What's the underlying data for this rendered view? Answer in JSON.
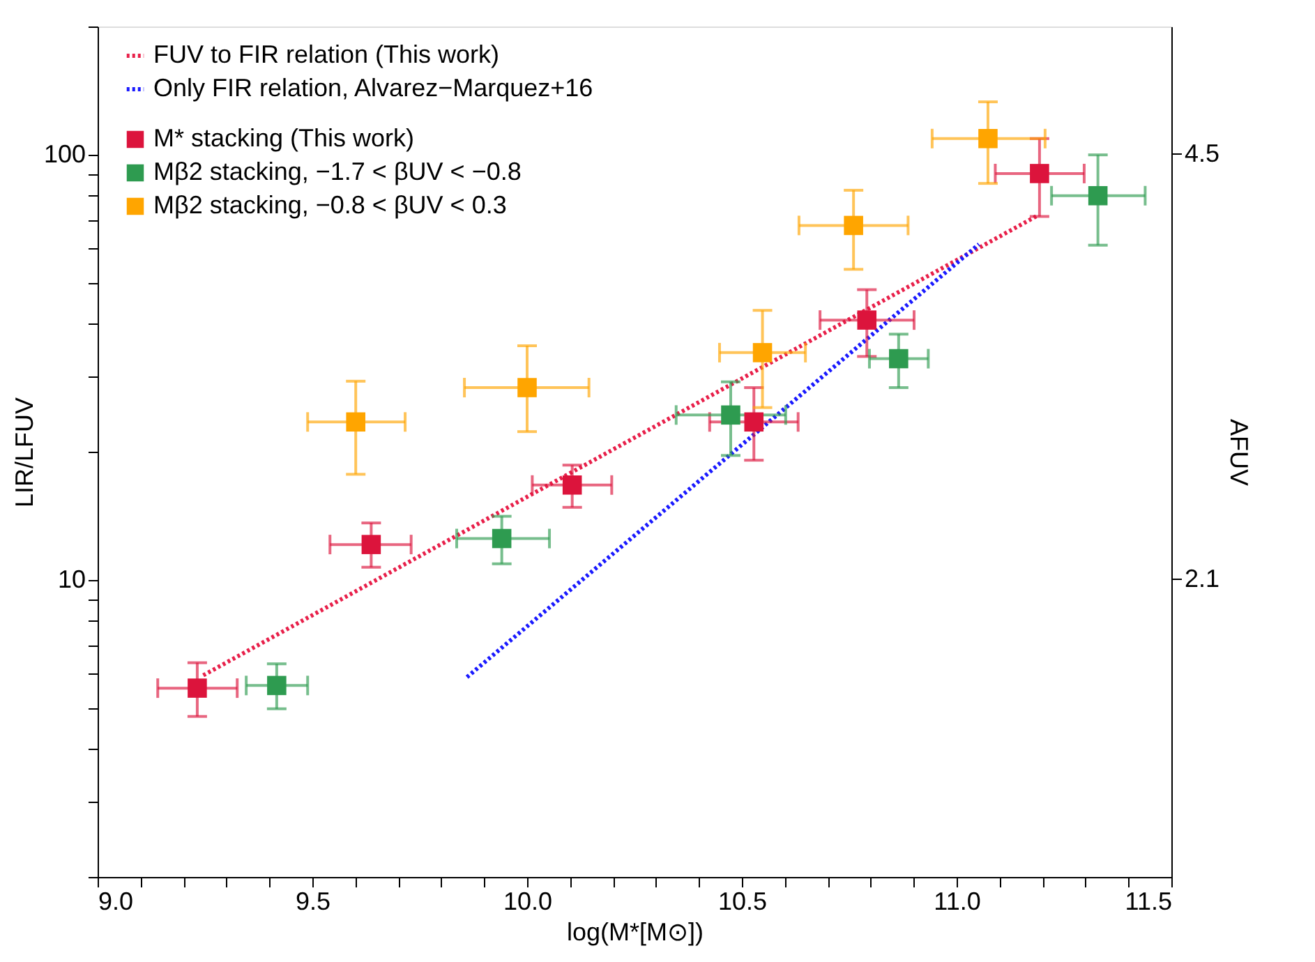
{
  "chart_data": {
    "type": "scatter",
    "xlabel": "log(M*[M⊙])",
    "ylabel": "LIR/LFUV",
    "y2label": "AFUV",
    "log": "y",
    "grid": false,
    "legend": "top left",
    "xlim": [
      9.0,
      11.5
    ],
    "xticks": [
      {
        "value": 9.0,
        "label": "9.0"
      },
      {
        "value": 9.1,
        "label": null
      },
      {
        "value": 9.2,
        "label": null
      },
      {
        "value": 9.3,
        "label": null
      },
      {
        "value": 9.4,
        "label": null
      },
      {
        "value": 9.5,
        "label": "9.5"
      },
      {
        "value": 9.6,
        "label": null
      },
      {
        "value": 9.7,
        "label": null
      },
      {
        "value": 9.8,
        "label": null
      },
      {
        "value": 9.9,
        "label": null
      },
      {
        "value": 10.0,
        "label": "10.0"
      },
      {
        "value": 10.1,
        "label": null
      },
      {
        "value": 10.2,
        "label": null
      },
      {
        "value": 10.3,
        "label": null
      },
      {
        "value": 10.4,
        "label": null
      },
      {
        "value": 10.5,
        "label": "10.5"
      },
      {
        "value": 10.6,
        "label": null
      },
      {
        "value": 10.7,
        "label": null
      },
      {
        "value": 10.8,
        "label": null
      },
      {
        "value": 10.9,
        "label": null
      },
      {
        "value": 11.0,
        "label": "11.0"
      },
      {
        "value": 11.1,
        "label": null
      },
      {
        "value": 11.2,
        "label": null
      },
      {
        "value": 11.3,
        "label": null
      },
      {
        "value": 11.4,
        "label": null
      },
      {
        "value": 11.5,
        "label": "11.5"
      }
    ],
    "ylim": [
      2,
      200
    ],
    "yticks": [
      {
        "value": 2,
        "label": null
      },
      {
        "value": 3,
        "label": null
      },
      {
        "value": 4,
        "label": null
      },
      {
        "value": 5,
        "label": null
      },
      {
        "value": 6,
        "label": null
      },
      {
        "value": 7,
        "label": null
      },
      {
        "value": 8,
        "label": null
      },
      {
        "value": 9,
        "label": null
      },
      10,
      {
        "value": 20,
        "label": null
      },
      {
        "value": 30,
        "label": null
      },
      {
        "value": 40,
        "label": null
      },
      {
        "value": 50,
        "label": null
      },
      {
        "value": 60,
        "label": null
      },
      {
        "value": 70,
        "label": null
      },
      {
        "value": 80,
        "label": null
      },
      {
        "value": 90,
        "label": null
      },
      100,
      {
        "value": 200,
        "label": null
      }
    ],
    "y2lim": [
      0.42,
      5.22
    ],
    "y2ticks": [
      2.1,
      4.5
    ],
    "series": [
      {
        "name": "FUV to FIR relation (This work)",
        "type": "line",
        "color": "#e8204a",
        "line_style": "dotted",
        "marker": "none",
        "x": [
          9.246,
          11.189
        ],
        "values": [
          5.96,
          71.9
        ]
      },
      {
        "name": "Only FIR relation, Alvarez−Marquez+16",
        "type": "line",
        "color": "#1a1aff",
        "line_style": "dotted",
        "marker": "none",
        "x": [
          9.86,
          11.052
        ],
        "values": [
          5.9,
          61.5
        ]
      },
      {
        "name": "M* stacking (This work)",
        "color": "#dc143c",
        "marker": "square",
        "x": [
          9.232,
          9.637,
          10.105,
          10.528,
          10.791,
          11.193
        ],
        "values": [
          5.56,
          12.1,
          16.7,
          23.5,
          40.8,
          90.2
        ],
        "errors": [
          [
            4.77,
            6.38
          ],
          [
            10.7,
            13.6
          ],
          [
            14.8,
            18.6
          ],
          [
            19.1,
            28.3
          ],
          [
            33.5,
            48.1
          ],
          [
            71.5,
            109
          ]
        ],
        "xerrors": [
          [
            9.14,
            9.325
          ],
          [
            9.541,
            9.73
          ],
          [
            10.012,
            10.197
          ],
          [
            10.425,
            10.631
          ],
          [
            10.682,
            10.901
          ],
          [
            11.09,
            11.297
          ]
        ]
      },
      {
        "name": "Mβ2 stacking, −1.7 < βUV < −0.8",
        "color": "#2e9b50",
        "marker": "square",
        "x": [
          9.417,
          9.941,
          10.474,
          10.865,
          11.329
        ],
        "values": [
          5.64,
          12.5,
          24.4,
          33.1,
          80.0
        ],
        "errors": [
          [
            4.97,
            6.34
          ],
          [
            10.9,
            14.1
          ],
          [
            19.6,
            29.2
          ],
          [
            28.3,
            37.8
          ],
          [
            61.2,
            99.8
          ]
        ],
        "xerrors": [
          [
            9.346,
            9.489
          ],
          [
            9.836,
            10.052
          ],
          [
            10.347,
            10.602
          ],
          [
            10.797,
            10.934
          ],
          [
            11.221,
            11.439
          ]
        ]
      },
      {
        "name": "Mβ2 stacking, −0.8 < βUV < 0.3",
        "color": "#ffa500",
        "marker": "square",
        "x": [
          9.601,
          10.0,
          10.548,
          10.76,
          11.073
        ],
        "values": [
          23.5,
          28.3,
          34.2,
          68.1,
          109
        ],
        "errors": [
          [
            17.7,
            29.3
          ],
          [
            22.3,
            35.5
          ],
          [
            25.4,
            43.0
          ],
          [
            53.7,
            82.4
          ],
          [
            85.5,
            133
          ]
        ],
        "xerrors": [
          [
            9.489,
            9.716
          ],
          [
            9.854,
            10.144
          ],
          [
            10.448,
            10.648
          ],
          [
            10.633,
            10.887
          ],
          [
            10.943,
            11.206
          ]
        ]
      }
    ]
  }
}
